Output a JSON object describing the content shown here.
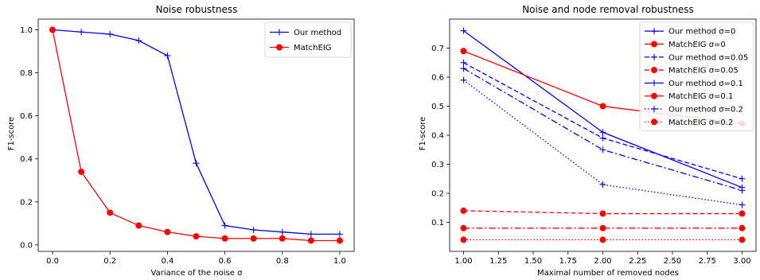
{
  "chart_data": [
    {
      "type": "line",
      "title": "Noise robustness",
      "xlabel": "Variance of the noise σ",
      "ylabel": "F1-score",
      "xlim": [
        -0.05,
        1.05
      ],
      "ylim": [
        -0.03,
        1.05
      ],
      "xticks": [
        "0.0",
        "0.2",
        "0.4",
        "0.6",
        "0.8",
        "1.0"
      ],
      "yticks": [
        "0.0",
        "0.2",
        "0.4",
        "0.6",
        "0.8",
        "1.0"
      ],
      "grid": false,
      "legend": "top-right",
      "x": [
        0.0,
        0.1,
        0.2,
        0.3,
        0.4,
        0.5,
        0.6,
        0.7,
        0.8,
        0.9,
        1.0
      ],
      "series": [
        {
          "name": "Our method",
          "color": "#0000ff",
          "marker": "plus",
          "dash": "solid",
          "values": [
            1.0,
            0.99,
            0.98,
            0.95,
            0.88,
            0.38,
            0.09,
            0.07,
            0.06,
            0.05,
            0.05
          ]
        },
        {
          "name": "MatchEIG",
          "color": "#ff0000",
          "marker": "circle",
          "dash": "solid",
          "values": [
            1.0,
            0.34,
            0.15,
            0.09,
            0.06,
            0.04,
            0.03,
            0.03,
            0.03,
            0.02,
            0.02
          ]
        }
      ]
    },
    {
      "type": "line",
      "title": "Noise and node removal robustness",
      "xlabel": "Maximal number of removed nodes",
      "ylabel": "F1-score",
      "xlim": [
        0.9,
        3.1
      ],
      "ylim": [
        0.0,
        0.8
      ],
      "xticks": [
        "1.00",
        "1.25",
        "1.50",
        "1.75",
        "2.00",
        "2.25",
        "2.50",
        "2.75",
        "3.00"
      ],
      "yticks": [
        "0.1",
        "0.2",
        "0.3",
        "0.4",
        "0.5",
        "0.6",
        "0.7"
      ],
      "grid": false,
      "legend": "top-right",
      "x": [
        1,
        2,
        3
      ],
      "series": [
        {
          "name": "Our method σ=0",
          "color": "#0000ff",
          "marker": "plus",
          "dash": "solid",
          "values": [
            0.76,
            0.41,
            0.22
          ]
        },
        {
          "name": "MatchEIG σ=0",
          "color": "#ff0000",
          "marker": "circle",
          "dash": "solid",
          "values": [
            0.69,
            0.5,
            0.44
          ]
        },
        {
          "name": "Our method σ=0.05",
          "color": "#0000ff",
          "marker": "plus",
          "dash": "dashed",
          "values": [
            0.65,
            0.39,
            0.25
          ]
        },
        {
          "name": "MatchEIG σ=0.05",
          "color": "#ff0000",
          "marker": "circle",
          "dash": "dashed",
          "values": [
            0.14,
            0.13,
            0.13
          ]
        },
        {
          "name": "Our method σ=0.1",
          "color": "#0000ff",
          "marker": "plus",
          "dash": "dashdot",
          "values": [
            0.63,
            0.35,
            0.21
          ]
        },
        {
          "name": "MatchEIG σ=0.1",
          "color": "#ff0000",
          "marker": "circle",
          "dash": "dashdot",
          "values": [
            0.08,
            0.08,
            0.08
          ]
        },
        {
          "name": "Our method σ=0.2",
          "color": "#0000ff",
          "marker": "plus",
          "dash": "dotted",
          "values": [
            0.59,
            0.23,
            0.16
          ]
        },
        {
          "name": "MatchEIG σ=0.2",
          "color": "#ff0000",
          "marker": "circle",
          "dash": "dotted",
          "values": [
            0.04,
            0.04,
            0.04
          ]
        }
      ]
    }
  ]
}
